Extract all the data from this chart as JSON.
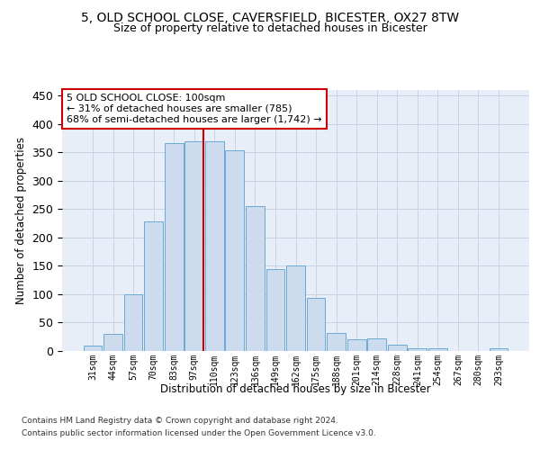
{
  "title1": "5, OLD SCHOOL CLOSE, CAVERSFIELD, BICESTER, OX27 8TW",
  "title2": "Size of property relative to detached houses in Bicester",
  "xlabel": "Distribution of detached houses by size in Bicester",
  "ylabel": "Number of detached properties",
  "footnote1": "Contains HM Land Registry data © Crown copyright and database right 2024.",
  "footnote2": "Contains public sector information licensed under the Open Government Licence v3.0.",
  "annotation_line1": "5 OLD SCHOOL CLOSE: 100sqm",
  "annotation_line2": "← 31% of detached houses are smaller (785)",
  "annotation_line3": "68% of semi-detached houses are larger (1,742) →",
  "bar_labels": [
    "31sqm",
    "44sqm",
    "57sqm",
    "70sqm",
    "83sqm",
    "97sqm",
    "110sqm",
    "123sqm",
    "136sqm",
    "149sqm",
    "162sqm",
    "175sqm",
    "188sqm",
    "201sqm",
    "214sqm",
    "228sqm",
    "241sqm",
    "254sqm",
    "267sqm",
    "280sqm",
    "293sqm"
  ],
  "bar_values": [
    10,
    30,
    100,
    228,
    367,
    370,
    370,
    353,
    255,
    144,
    150,
    94,
    32,
    21,
    22,
    11,
    5,
    4,
    0,
    0,
    4
  ],
  "bar_color": "#ccdcee",
  "bar_edge_color": "#6aaad4",
  "vline_color": "#cc0000",
  "vline_bar_idx": 5,
  "ylim_max": 460,
  "yticks": [
    0,
    50,
    100,
    150,
    200,
    250,
    300,
    350,
    400,
    450
  ],
  "annotation_box_facecolor": "#ffffff",
  "annotation_box_edgecolor": "#cc0000",
  "grid_color": "#c8d4e4",
  "bg_color": "#e8eef8",
  "title1_fontsize": 10,
  "title2_fontsize": 9,
  "footnote_fontsize": 6.5
}
